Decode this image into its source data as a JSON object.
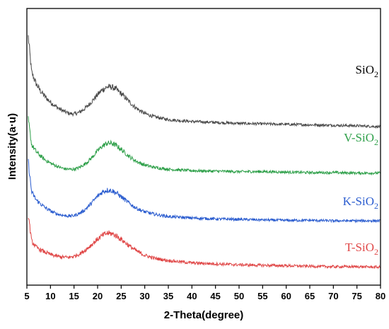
{
  "chart_data": {
    "type": "line",
    "title": "",
    "xlabel": "2-Theta(degree)",
    "ylabel": "Intensity(a·u)",
    "xlim": [
      5,
      80
    ],
    "xticks": [
      "5",
      "10",
      "15",
      "20",
      "25",
      "30",
      "35",
      "40",
      "45",
      "50",
      "55",
      "60",
      "65",
      "70",
      "75",
      "80"
    ],
    "y_ticks_labeled": false,
    "grid": false,
    "legend": "inline labels at right end of each curve",
    "series": [
      {
        "name": "SiO2",
        "label_main": "SiO",
        "label_sub": "2",
        "color": "#4a4a4a",
        "offset": 3.0,
        "x": [
          5.3,
          6,
          7,
          8,
          9,
          10,
          11,
          12,
          13,
          14,
          15,
          16,
          17,
          18,
          19,
          20,
          21,
          22,
          23,
          24,
          25,
          26,
          27,
          28,
          29,
          30,
          32,
          35,
          40,
          45,
          50,
          55,
          60,
          65,
          70,
          75,
          80
        ],
        "y": [
          1.9,
          1.15,
          0.9,
          0.74,
          0.62,
          0.52,
          0.44,
          0.37,
          0.32,
          0.28,
          0.27,
          0.3,
          0.36,
          0.45,
          0.56,
          0.68,
          0.78,
          0.84,
          0.84,
          0.79,
          0.7,
          0.6,
          0.5,
          0.41,
          0.34,
          0.28,
          0.21,
          0.15,
          0.11,
          0.09,
          0.07,
          0.06,
          0.05,
          0.04,
          0.03,
          0.02,
          0.0
        ]
      },
      {
        "name": "V-SiO2",
        "label_main": "V-SiO",
        "label_sub": "2",
        "color": "#2fa04a",
        "offset": 2.0,
        "x": [
          5.3,
          6,
          7,
          8,
          9,
          10,
          11,
          12,
          13,
          14,
          15,
          16,
          17,
          18,
          19,
          20,
          21,
          22,
          23,
          24,
          25,
          26,
          27,
          28,
          29,
          30,
          32,
          35,
          40,
          45,
          50,
          55,
          60,
          65,
          70,
          75,
          80
        ],
        "y": [
          1.15,
          0.62,
          0.47,
          0.37,
          0.29,
          0.23,
          0.18,
          0.14,
          0.11,
          0.1,
          0.1,
          0.13,
          0.19,
          0.27,
          0.37,
          0.49,
          0.59,
          0.65,
          0.65,
          0.6,
          0.52,
          0.43,
          0.35,
          0.28,
          0.23,
          0.19,
          0.14,
          0.1,
          0.07,
          0.06,
          0.05,
          0.05,
          0.04,
          0.03,
          0.03,
          0.02,
          0.02
        ]
      },
      {
        "name": "K-SiO2",
        "label_main": "K-SiO",
        "label_sub": "2",
        "color": "#2a5ccf",
        "offset": 1.0,
        "x": [
          5.3,
          6,
          7,
          8,
          9,
          10,
          11,
          12,
          13,
          14,
          15,
          16,
          17,
          18,
          19,
          20,
          21,
          22,
          23,
          24,
          25,
          26,
          27,
          28,
          29,
          30,
          32,
          35,
          40,
          45,
          50,
          55,
          60,
          65,
          70,
          75,
          80
        ],
        "y": [
          1.25,
          0.62,
          0.45,
          0.36,
          0.28,
          0.22,
          0.17,
          0.14,
          0.12,
          0.11,
          0.12,
          0.16,
          0.22,
          0.31,
          0.42,
          0.53,
          0.62,
          0.66,
          0.65,
          0.6,
          0.52,
          0.44,
          0.36,
          0.29,
          0.24,
          0.2,
          0.15,
          0.1,
          0.07,
          0.05,
          0.04,
          0.03,
          0.02,
          0.02,
          0.01,
          0.01,
          0.01
        ]
      },
      {
        "name": "T-SiO2",
        "label_main": "T-SiO",
        "label_sub": "2",
        "color": "#e04848",
        "offset": 0.0,
        "x": [
          5.3,
          6,
          7,
          8,
          9,
          10,
          11,
          12,
          13,
          14,
          15,
          16,
          17,
          18,
          19,
          20,
          21,
          22,
          23,
          24,
          25,
          26,
          27,
          28,
          29,
          30,
          32,
          35,
          40,
          45,
          50,
          55,
          60,
          65,
          70,
          75,
          80
        ],
        "y": [
          1.15,
          0.58,
          0.45,
          0.39,
          0.34,
          0.3,
          0.27,
          0.25,
          0.24,
          0.24,
          0.26,
          0.3,
          0.36,
          0.44,
          0.53,
          0.62,
          0.7,
          0.75,
          0.74,
          0.69,
          0.62,
          0.54,
          0.46,
          0.39,
          0.33,
          0.28,
          0.22,
          0.17,
          0.12,
          0.1,
          0.08,
          0.07,
          0.06,
          0.05,
          0.04,
          0.04,
          0.03
        ]
      }
    ]
  }
}
